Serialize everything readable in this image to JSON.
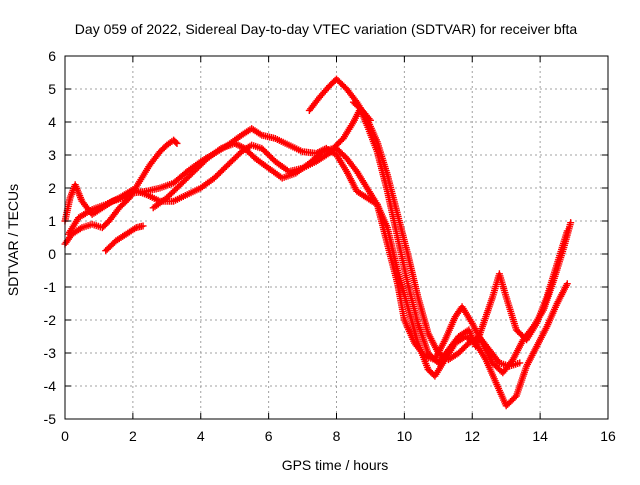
{
  "colors": {
    "series": "#ff0000",
    "grid": "#a0a0a0",
    "axis": "#000000"
  },
  "chart_data": {
    "type": "scatter",
    "title": "Day 059 of 2022, Sidereal Day-to-day VTEC variation (SDTVAR) for receiver bfta",
    "xlabel": "GPS time / hours",
    "ylabel": "SDTVAR / TECUs",
    "xlim": [
      0,
      16
    ],
    "ylim": [
      -5,
      6
    ],
    "xticks": [
      0,
      2,
      4,
      6,
      8,
      10,
      12,
      14,
      16
    ],
    "yticks": [
      -5,
      -4,
      -3,
      -2,
      -1,
      0,
      1,
      2,
      3,
      4,
      5,
      6
    ],
    "grid": true,
    "marker": "plus",
    "series": [
      {
        "points": [
          [
            0.0,
            0.3
          ],
          [
            0.2,
            0.6
          ],
          [
            0.5,
            0.8
          ],
          [
            0.8,
            0.9
          ],
          [
            1.1,
            0.8
          ],
          [
            1.3,
            1.0
          ],
          [
            1.6,
            1.4
          ],
          [
            1.9,
            1.7
          ],
          [
            2.2,
            2.2
          ],
          [
            2.5,
            2.7
          ],
          [
            2.8,
            3.1
          ],
          [
            3.0,
            3.3
          ],
          [
            3.2,
            3.45
          ],
          [
            3.3,
            3.35
          ]
        ]
      },
      {
        "points": [
          [
            0.0,
            1.0
          ],
          [
            0.15,
            1.7
          ],
          [
            0.3,
            2.1
          ],
          [
            0.5,
            1.6
          ],
          [
            0.8,
            1.2
          ],
          [
            1.1,
            1.4
          ],
          [
            1.4,
            1.6
          ],
          [
            1.7,
            1.7
          ],
          [
            2.0,
            1.85
          ],
          [
            2.4,
            1.9
          ],
          [
            2.8,
            2.0
          ],
          [
            3.2,
            2.15
          ],
          [
            3.6,
            2.5
          ],
          [
            4.0,
            2.8
          ],
          [
            4.4,
            3.05
          ],
          [
            4.8,
            3.3
          ],
          [
            5.2,
            3.6
          ],
          [
            5.5,
            3.8
          ],
          [
            5.8,
            3.6
          ],
          [
            6.2,
            3.5
          ],
          [
            6.6,
            3.3
          ],
          [
            7.0,
            3.1
          ],
          [
            7.4,
            3.05
          ],
          [
            7.7,
            3.2
          ],
          [
            8.0,
            3.0
          ],
          [
            8.3,
            2.5
          ],
          [
            8.6,
            1.9
          ],
          [
            8.9,
            1.7
          ],
          [
            9.2,
            1.5
          ],
          [
            9.5,
            0.3
          ],
          [
            9.8,
            -0.9
          ],
          [
            10.0,
            -2.0
          ],
          [
            10.3,
            -2.7
          ],
          [
            10.6,
            -3.1
          ],
          [
            10.9,
            -3.2
          ],
          [
            11.2,
            -2.6
          ],
          [
            11.5,
            -1.9
          ],
          [
            11.7,
            -1.6
          ],
          [
            12.0,
            -2.1
          ],
          [
            12.3,
            -2.7
          ],
          [
            12.6,
            -3.3
          ],
          [
            12.9,
            -3.6
          ],
          [
            13.2,
            -3.2
          ],
          [
            13.5,
            -2.6
          ],
          [
            13.8,
            -2.2
          ],
          [
            14.1,
            -1.7
          ],
          [
            14.4,
            -0.8
          ],
          [
            14.7,
            0.2
          ],
          [
            14.9,
            0.95
          ]
        ]
      },
      {
        "points": [
          [
            0.1,
            0.6
          ],
          [
            0.4,
            1.1
          ],
          [
            0.8,
            1.35
          ],
          [
            1.2,
            1.5
          ],
          [
            1.6,
            1.7
          ],
          [
            2.0,
            1.95
          ],
          [
            2.4,
            1.8
          ],
          [
            2.8,
            1.6
          ],
          [
            3.2,
            1.6
          ],
          [
            3.6,
            1.8
          ],
          [
            4.0,
            2.0
          ],
          [
            4.4,
            2.3
          ],
          [
            4.8,
            2.7
          ],
          [
            5.2,
            3.1
          ],
          [
            5.5,
            3.3
          ],
          [
            5.8,
            3.2
          ],
          [
            6.2,
            2.8
          ],
          [
            6.6,
            2.5
          ],
          [
            7.0,
            2.6
          ],
          [
            7.4,
            2.8
          ],
          [
            7.7,
            3.0
          ],
          [
            8.0,
            3.2
          ],
          [
            8.3,
            2.9
          ],
          [
            8.6,
            2.5
          ],
          [
            8.9,
            2.0
          ],
          [
            9.2,
            1.5
          ],
          [
            9.5,
            0.8
          ],
          [
            9.8,
            -0.5
          ],
          [
            10.1,
            -1.6
          ],
          [
            10.4,
            -2.7
          ],
          [
            10.7,
            -3.5
          ],
          [
            10.9,
            -3.7
          ],
          [
            11.2,
            -3.2
          ],
          [
            11.5,
            -2.7
          ],
          [
            11.8,
            -2.5
          ],
          [
            12.1,
            -2.7
          ],
          [
            12.4,
            -3.2
          ],
          [
            12.7,
            -3.9
          ],
          [
            13.0,
            -4.6
          ],
          [
            13.3,
            -4.3
          ],
          [
            13.6,
            -3.4
          ],
          [
            13.9,
            -2.8
          ],
          [
            14.2,
            -2.2
          ],
          [
            14.5,
            -1.5
          ],
          [
            14.8,
            -0.9
          ]
        ]
      },
      {
        "points": [
          [
            1.2,
            0.1
          ],
          [
            1.5,
            0.4
          ],
          [
            1.8,
            0.6
          ],
          [
            2.1,
            0.8
          ],
          [
            2.3,
            0.85
          ]
        ]
      },
      {
        "points": [
          [
            2.6,
            1.4
          ],
          [
            3.0,
            1.7
          ],
          [
            3.4,
            2.1
          ],
          [
            3.8,
            2.5
          ],
          [
            4.2,
            2.9
          ],
          [
            4.6,
            3.2
          ],
          [
            5.0,
            3.35
          ],
          [
            5.3,
            3.2
          ],
          [
            5.6,
            2.9
          ],
          [
            6.0,
            2.6
          ],
          [
            6.4,
            2.3
          ],
          [
            6.8,
            2.45
          ],
          [
            7.2,
            2.75
          ],
          [
            7.6,
            3.1
          ],
          [
            7.9,
            3.2
          ],
          [
            8.2,
            3.5
          ],
          [
            8.5,
            4.0
          ],
          [
            8.7,
            4.4
          ],
          [
            8.9,
            3.9
          ],
          [
            9.2,
            3.1
          ],
          [
            9.5,
            1.9
          ],
          [
            9.8,
            0.5
          ],
          [
            10.1,
            -0.9
          ],
          [
            10.4,
            -2.1
          ],
          [
            10.7,
            -3.0
          ],
          [
            11.0,
            -3.3
          ],
          [
            11.3,
            -2.9
          ],
          [
            11.6,
            -2.5
          ],
          [
            11.9,
            -2.3
          ],
          [
            12.1,
            -2.8
          ],
          [
            12.3,
            -2.2
          ],
          [
            12.6,
            -1.3
          ],
          [
            12.8,
            -0.6
          ],
          [
            13.0,
            -1.3
          ],
          [
            13.3,
            -2.3
          ],
          [
            13.6,
            -2.6
          ],
          [
            13.9,
            -2.1
          ],
          [
            14.2,
            -1.3
          ],
          [
            14.5,
            -0.3
          ],
          [
            14.8,
            0.7
          ]
        ]
      },
      {
        "points": [
          [
            7.2,
            4.35
          ],
          [
            7.5,
            4.75
          ],
          [
            7.8,
            5.1
          ],
          [
            8.0,
            5.3
          ],
          [
            8.3,
            5.0
          ],
          [
            8.6,
            4.6
          ],
          [
            8.9,
            4.1
          ],
          [
            9.2,
            3.4
          ],
          [
            9.5,
            2.4
          ],
          [
            9.8,
            1.2
          ],
          [
            10.1,
            0.0
          ],
          [
            10.4,
            -1.3
          ],
          [
            10.7,
            -2.4
          ],
          [
            11.0,
            -3.0
          ],
          [
            11.3,
            -3.2
          ],
          [
            11.6,
            -3.0
          ],
          [
            11.9,
            -2.7
          ],
          [
            12.2,
            -2.5
          ],
          [
            12.5,
            -2.9
          ],
          [
            12.8,
            -3.3
          ],
          [
            13.1,
            -3.4
          ],
          [
            13.4,
            -3.3
          ]
        ]
      },
      {
        "points": [
          [
            8.5,
            4.6
          ],
          [
            8.8,
            4.3
          ],
          [
            9.0,
            4.05
          ]
        ]
      }
    ]
  }
}
